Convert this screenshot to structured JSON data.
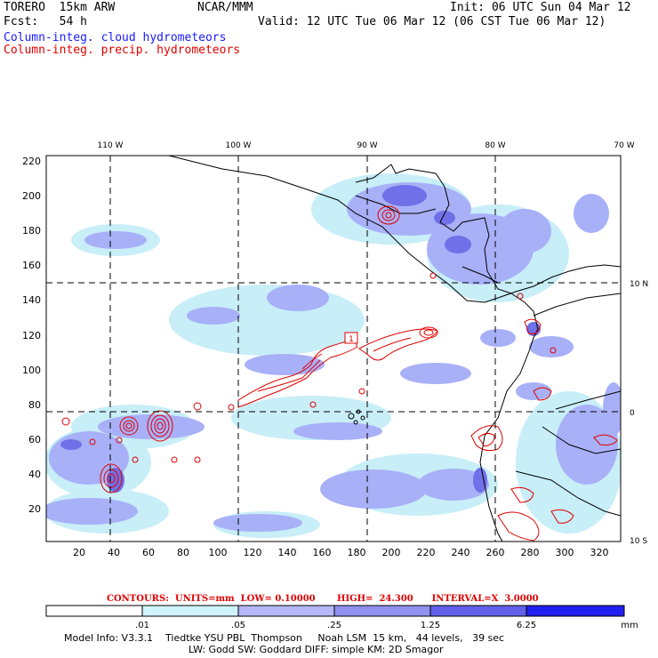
{
  "header": {
    "model": "TORERO  15km ARW",
    "org": "NCAR/MMM",
    "init": "Init: 06 UTC Sun 04 Mar 12",
    "fcst": "Fcst:   54 h",
    "valid": "Valid: 12 UTC Tue 06 Mar 12 (06 CST Tue 06 Mar 12)",
    "field_cloud": "Column-integ. cloud hydrometeors",
    "field_precip": "Column-integ. precip. hydrometeors"
  },
  "map": {
    "lon_labels": [
      "110 W",
      "100 W",
      "90 W",
      "80 W",
      "70 W"
    ],
    "lat_labels": [
      "10 N",
      "0",
      "10 S"
    ],
    "y_ticks": [
      "220",
      "200",
      "180",
      "160",
      "140",
      "120",
      "100",
      "80",
      "60",
      "40",
      "20"
    ],
    "x_ticks": [
      "20",
      "40",
      "60",
      "80",
      "100",
      "120",
      "140",
      "160",
      "180",
      "200",
      "220",
      "240",
      "260",
      "280",
      "300",
      "320"
    ],
    "point_label": "1",
    "colors": {
      "cloud_light": "#c8eef8",
      "cloud_mid": "#a8b0f8",
      "cloud_dark": "#7070e8",
      "precip": "#e00000",
      "coast": "#000000"
    }
  },
  "contours_line": "CONTOURS:  UNITS=mm  LOW= 0.10000       HIGH=  24.300      INTERVAL=X  3.0000",
  "colorbar": {
    "labels": [
      ".01",
      ".05",
      ".25",
      "1.25",
      "6.25"
    ],
    "unit": "mm",
    "colors": [
      "#ffffff",
      "#d0f4fc",
      "#b4b8f8",
      "#9090f0",
      "#6060e8",
      "#2020f0"
    ]
  },
  "footer": {
    "line1": "Model Info: V3.3.1    Tiedtke YSU PBL  Thompson     Noah LSM  15 km,   44 levels,   39 sec",
    "line2": "LW: Godd SW: Goddard DIFF: simple KM: 2D Smagor"
  }
}
